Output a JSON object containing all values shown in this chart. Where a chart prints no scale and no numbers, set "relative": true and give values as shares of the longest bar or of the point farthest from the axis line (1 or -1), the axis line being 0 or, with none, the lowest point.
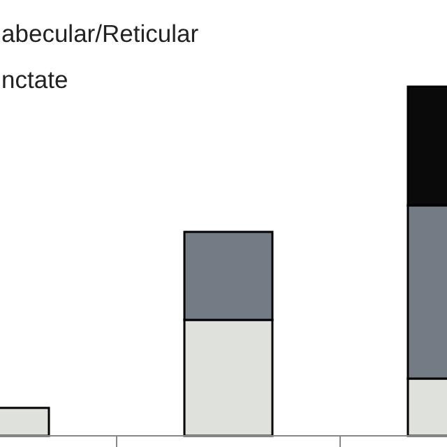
{
  "chart_data": {
    "type": "bar",
    "stacked": true,
    "relative": true,
    "categories": [
      null,
      null,
      null
    ],
    "series": [
      {
        "color": "#dfe1dd",
        "values": [
          0.08,
          0.332,
          0.164
        ]
      },
      {
        "color": "#737b84",
        "values": [
          0,
          0.252,
          0.496
        ]
      },
      {
        "color": "#0a0a0a",
        "values": [
          0,
          0,
          0.34
        ]
      }
    ],
    "annotations": [
      "abecular/Reticular",
      "nctate"
    ]
  }
}
